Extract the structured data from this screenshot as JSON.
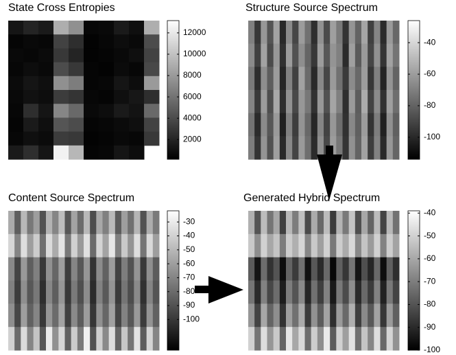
{
  "chart_data": [
    {
      "type": "heatmap",
      "title": "State Cross Entropies",
      "colormap": "gray",
      "zlim": [
        150,
        13150
      ],
      "zticks": [
        2000,
        4000,
        6000,
        8000,
        10000,
        12000
      ],
      "values": [
        [
          1200,
          2000,
          1500,
          9000,
          7500,
          500,
          600,
          1500,
          900,
          9000
        ],
        [
          400,
          600,
          500,
          3500,
          2500,
          300,
          500,
          800,
          600,
          4000
        ],
        [
          600,
          500,
          700,
          3000,
          2000,
          300,
          400,
          600,
          900,
          3500
        ],
        [
          500,
          800,
          600,
          4000,
          3000,
          400,
          300,
          700,
          500,
          3800
        ],
        [
          700,
          1200,
          900,
          7500,
          6500,
          400,
          500,
          1200,
          800,
          8000
        ],
        [
          600,
          1000,
          800,
          3200,
          2800,
          500,
          400,
          900,
          1300,
          2500
        ],
        [
          500,
          2500,
          1200,
          7000,
          5500,
          600,
          800,
          1500,
          1100,
          5500
        ],
        [
          400,
          1500,
          900,
          4500,
          4000,
          400,
          500,
          700,
          900,
          3500
        ],
        [
          500,
          900,
          700,
          3200,
          3000,
          300,
          400,
          600,
          500,
          3000
        ],
        [
          1500,
          2500,
          1200,
          12500,
          9500,
          400,
          500,
          1200,
          800,
          null
        ]
      ]
    },
    {
      "type": "heatmap",
      "title": "Structure Source Spectrum",
      "colormap": "gray",
      "zlim": [
        -114,
        -26
      ],
      "zticks": [
        -100,
        -80,
        -60,
        -40
      ],
      "values": [
        [
          -70,
          -95,
          -62,
          -85,
          -58,
          -100,
          -66,
          -90,
          -60,
          -75,
          -98,
          -64,
          -88,
          -59,
          -72,
          -96,
          -63,
          -80,
          -57,
          -92,
          -68,
          -99,
          -61,
          -78
        ],
        [
          -66,
          -92,
          -58,
          -88,
          -62,
          -97,
          -60,
          -86,
          -65,
          -79,
          -95,
          -60,
          -84,
          -63,
          -70,
          -99,
          -59,
          -83,
          -61,
          -90,
          -64,
          -96,
          -58,
          -74
        ],
        [
          -72,
          -98,
          -65,
          -82,
          -60,
          -101,
          -69,
          -92,
          -58,
          -77,
          -100,
          -67,
          -90,
          -61,
          -75,
          -94,
          -66,
          -78,
          -60,
          -95,
          -70,
          -102,
          -63,
          -80
        ],
        [
          -68,
          -94,
          -60,
          -87,
          -56,
          -98,
          -64,
          -89,
          -62,
          -73,
          -97,
          -62,
          -86,
          -57,
          -70,
          -98,
          -61,
          -82,
          -55,
          -91,
          -66,
          -97,
          -59,
          -76
        ],
        [
          -74,
          -99,
          -66,
          -84,
          -61,
          -103,
          -70,
          -93,
          -63,
          -78,
          -101,
          -68,
          -91,
          -62,
          -76,
          -97,
          -67,
          -81,
          -60,
          -96,
          -71,
          -103,
          -64,
          -81
        ],
        [
          -71,
          -96,
          -63,
          -86,
          -59,
          -100,
          -67,
          -91,
          -61,
          -76,
          -99,
          -65,
          -89,
          -60,
          -73,
          -96,
          -64,
          -80,
          -58,
          -93,
          -69,
          -100,
          -62,
          -79
        ]
      ]
    },
    {
      "type": "heatmap",
      "title": "Content Source Spectrum",
      "colormap": "gray",
      "zlim": [
        -122,
        -22
      ],
      "zticks": [
        -100,
        -90,
        -80,
        -70,
        -60,
        -50,
        -40,
        -30
      ],
      "values": [
        [
          -55,
          -85,
          -50,
          -75,
          -60,
          -90,
          -52,
          -70,
          -48,
          -88,
          -58,
          -80,
          -50,
          -92,
          -56,
          -72,
          -49,
          -86,
          -60,
          -78,
          -51,
          -90,
          -54,
          -74
        ],
        [
          -38,
          -70,
          -35,
          -60,
          -42,
          -78,
          -36,
          -55,
          -33,
          -75,
          -40,
          -62,
          -34,
          -80,
          -39,
          -58,
          -32,
          -72,
          -43,
          -64,
          -35,
          -76,
          -37,
          -60
        ],
        [
          -68,
          -95,
          -62,
          -85,
          -72,
          -100,
          -65,
          -82,
          -60,
          -98,
          -70,
          -88,
          -63,
          -102,
          -67,
          -84,
          -61,
          -96,
          -73,
          -90,
          -64,
          -100,
          -66,
          -86
        ],
        [
          -72,
          -98,
          -66,
          -88,
          -75,
          -104,
          -69,
          -85,
          -63,
          -100,
          -74,
          -91,
          -67,
          -105,
          -71,
          -87,
          -64,
          -99,
          -76,
          -92,
          -68,
          -103,
          -70,
          -89
        ],
        [
          -66,
          -94,
          -60,
          -84,
          -70,
          -100,
          -63,
          -80,
          -58,
          -97,
          -68,
          -86,
          -61,
          -101,
          -65,
          -82,
          -59,
          -95,
          -71,
          -88,
          -62,
          -99,
          -64,
          -84
        ],
        [
          -40,
          -80,
          -36,
          -70,
          -45,
          -88,
          -30,
          -65,
          -38,
          -84,
          -42,
          -74,
          -28,
          -90,
          -41,
          -68,
          -35,
          -82,
          -44,
          -76,
          -33,
          -86,
          -39,
          -70
        ]
      ]
    },
    {
      "type": "heatmap",
      "title": "Generated Hybrid Spectrum",
      "colormap": "gray",
      "zlim": [
        -100,
        -39
      ],
      "zticks": [
        -100,
        -90,
        -80,
        -70,
        -60,
        -50,
        -40
      ],
      "values": [
        [
          -58,
          -80,
          -55,
          -72,
          -60,
          -85,
          -56,
          -70,
          -54,
          -82,
          -59,
          -75,
          -55,
          -86,
          -57,
          -71,
          -53,
          -81,
          -60,
          -76,
          -55,
          -84,
          -56,
          -73
        ],
        [
          -52,
          -66,
          -50,
          -60,
          -53,
          -70,
          -51,
          -58,
          -49,
          -68,
          -52,
          -62,
          -50,
          -71,
          -51,
          -59,
          -48,
          -67,
          -53,
          -63,
          -50,
          -69,
          -51,
          -61
        ],
        [
          -78,
          -95,
          -74,
          -88,
          -80,
          -97,
          -76,
          -86,
          -73,
          -96,
          -79,
          -90,
          -75,
          -98,
          -77,
          -87,
          -72,
          -95,
          -81,
          -91,
          -75,
          -97,
          -77,
          -89
        ],
        [
          -72,
          -90,
          -69,
          -83,
          -74,
          -93,
          -70,
          -80,
          -67,
          -91,
          -73,
          -85,
          -69,
          -94,
          -71,
          -82,
          -66,
          -90,
          -75,
          -86,
          -69,
          -92,
          -71,
          -84
        ],
        [
          -64,
          -84,
          -60,
          -76,
          -66,
          -88,
          -62,
          -73,
          -59,
          -86,
          -65,
          -78,
          -61,
          -89,
          -63,
          -75,
          -58,
          -85,
          -67,
          -79,
          -61,
          -87,
          -63,
          -77
        ],
        [
          -50,
          -72,
          -47,
          -64,
          -52,
          -76,
          -45,
          -60,
          -48,
          -74,
          -51,
          -66,
          -44,
          -78,
          -50,
          -62,
          -46,
          -73,
          -53,
          -68,
          -47,
          -75,
          -49,
          -65
        ]
      ]
    }
  ]
}
